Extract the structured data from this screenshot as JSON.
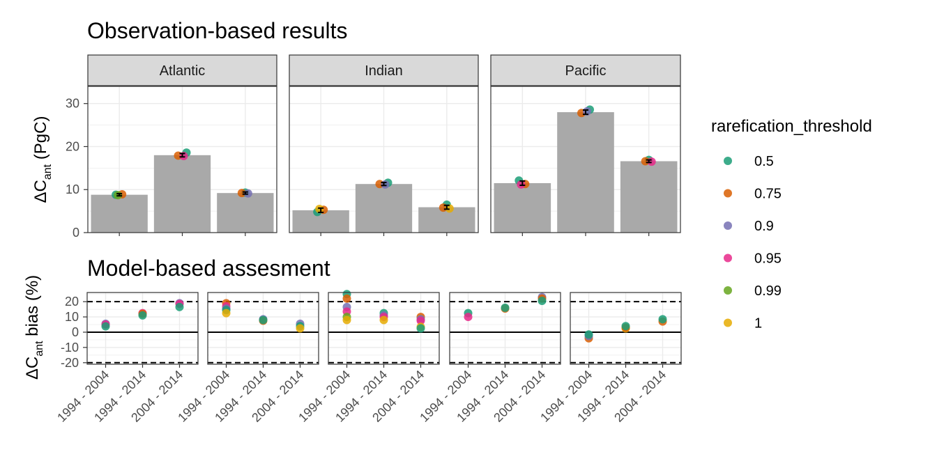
{
  "chart_data": [
    {
      "type": "bar",
      "title": "Observation-based results",
      "ylabel_prefix": "ΔC",
      "ylabel_sub": "ant",
      "ylabel_suffix": " (PgC)",
      "ylim": [
        0,
        34
      ],
      "yticks": [
        0,
        10,
        20,
        30
      ],
      "grid": true,
      "categories": [
        "1994 - 2004",
        "1994 - 2014",
        "2004 - 2014"
      ],
      "panels": [
        {
          "name": "Atlantic",
          "bars": [
            8.8,
            18.0,
            9.2
          ],
          "error": [
            0.25,
            0.4,
            0.25
          ],
          "points": [
            {
              "cat": 0,
              "threshold": "0.5",
              "value": 8.8
            },
            {
              "cat": 0,
              "threshold": "0.75",
              "value": 8.9
            },
            {
              "cat": 0,
              "threshold": "0.99",
              "value": 8.7
            },
            {
              "cat": 1,
              "threshold": "0.5",
              "value": 18.6
            },
            {
              "cat": 1,
              "threshold": "0.75",
              "value": 17.9
            },
            {
              "cat": 1,
              "threshold": "0.95",
              "value": 17.8
            },
            {
              "cat": 2,
              "threshold": "0.5",
              "value": 9.3
            },
            {
              "cat": 2,
              "threshold": "0.75",
              "value": 9.2
            },
            {
              "cat": 2,
              "threshold": "0.9",
              "value": 9.1
            }
          ]
        },
        {
          "name": "Indian",
          "bars": [
            5.2,
            11.3,
            5.9
          ],
          "error": [
            0.5,
            0.35,
            0.45
          ],
          "points": [
            {
              "cat": 0,
              "threshold": "0.5",
              "value": 4.8
            },
            {
              "cat": 0,
              "threshold": "0.75",
              "value": 5.3
            },
            {
              "cat": 0,
              "threshold": "1",
              "value": 5.5
            },
            {
              "cat": 1,
              "threshold": "0.5",
              "value": 11.6
            },
            {
              "cat": 1,
              "threshold": "0.75",
              "value": 11.3
            },
            {
              "cat": 1,
              "threshold": "0.9",
              "value": 11.2
            },
            {
              "cat": 2,
              "threshold": "0.5",
              "value": 6.5
            },
            {
              "cat": 2,
              "threshold": "0.75",
              "value": 5.8
            },
            {
              "cat": 2,
              "threshold": "1",
              "value": 5.6
            }
          ]
        },
        {
          "name": "Pacific",
          "bars": [
            11.5,
            28.0,
            16.6
          ],
          "error": [
            0.5,
            0.5,
            0.3
          ],
          "points": [
            {
              "cat": 0,
              "threshold": "0.5",
              "value": 12.1
            },
            {
              "cat": 0,
              "threshold": "0.75",
              "value": 11.3
            },
            {
              "cat": 0,
              "threshold": "0.95",
              "value": 11.2
            },
            {
              "cat": 1,
              "threshold": "0.5",
              "value": 28.6
            },
            {
              "cat": 1,
              "threshold": "0.75",
              "value": 27.8
            },
            {
              "cat": 1,
              "threshold": "0.9",
              "value": 28.2
            },
            {
              "cat": 2,
              "threshold": "0.5",
              "value": 16.9
            },
            {
              "cat": 2,
              "threshold": "0.75",
              "value": 16.6
            },
            {
              "cat": 2,
              "threshold": "0.95",
              "value": 16.5
            }
          ]
        }
      ]
    },
    {
      "type": "scatter",
      "title": "Model-based assesment",
      "ylabel_prefix": "ΔC",
      "ylabel_sub": "ant",
      "ylabel_suffix": " bias (%)",
      "ylim": [
        -21,
        26
      ],
      "yticks": [
        -20,
        -10,
        0,
        10,
        20
      ],
      "grid": true,
      "reference_lines": {
        "solid": [
          0
        ],
        "dashed": [
          -20,
          20
        ]
      },
      "categories": [
        "1994 - 2004",
        "1994 - 2014",
        "2004 - 2014"
      ],
      "panels": [
        {
          "points": [
            {
              "cat": 0,
              "threshold": "0.9",
              "value": 5.5
            },
            {
              "cat": 0,
              "threshold": "0.95",
              "value": 5.0
            },
            {
              "cat": 0,
              "threshold": "0.5",
              "value": 3.8
            },
            {
              "cat": 1,
              "threshold": "0.95",
              "value": 12.5
            },
            {
              "cat": 1,
              "threshold": "0.75",
              "value": 12.0
            },
            {
              "cat": 1,
              "threshold": "0.5",
              "value": 11.0
            },
            {
              "cat": 2,
              "threshold": "0.9",
              "value": 19.0
            },
            {
              "cat": 2,
              "threshold": "0.95",
              "value": 18.5
            },
            {
              "cat": 2,
              "threshold": "0.5",
              "value": 16.5
            }
          ]
        },
        {
          "points": [
            {
              "cat": 0,
              "threshold": "0.75",
              "value": 19.0
            },
            {
              "cat": 0,
              "threshold": "0.95",
              "value": 17.0
            },
            {
              "cat": 0,
              "threshold": "0.9",
              "value": 15.5
            },
            {
              "cat": 0,
              "threshold": "0.5",
              "value": 14.5
            },
            {
              "cat": 0,
              "threshold": "1",
              "value": 12.5
            },
            {
              "cat": 1,
              "threshold": "0.9",
              "value": 8.5
            },
            {
              "cat": 1,
              "threshold": "0.75",
              "value": 7.5
            },
            {
              "cat": 1,
              "threshold": "0.5",
              "value": 8.0
            },
            {
              "cat": 2,
              "threshold": "0.9",
              "value": 5.5
            },
            {
              "cat": 2,
              "threshold": "0.5",
              "value": 4.0
            },
            {
              "cat": 2,
              "threshold": "1",
              "value": 2.5
            }
          ]
        },
        {
          "points": [
            {
              "cat": 0,
              "threshold": "0.5",
              "value": 25.0
            },
            {
              "cat": 0,
              "threshold": "0.75",
              "value": 22.0
            },
            {
              "cat": 0,
              "threshold": "0.9",
              "value": 16.5
            },
            {
              "cat": 0,
              "threshold": "0.95",
              "value": 13.5
            },
            {
              "cat": 0,
              "threshold": "0.99",
              "value": 10.0
            },
            {
              "cat": 0,
              "threshold": "1",
              "value": 8.0
            },
            {
              "cat": 1,
              "threshold": "0.5",
              "value": 12.5
            },
            {
              "cat": 1,
              "threshold": "0.9",
              "value": 11.0
            },
            {
              "cat": 1,
              "threshold": "0.95",
              "value": 10.0
            },
            {
              "cat": 1,
              "threshold": "1",
              "value": 8.0
            },
            {
              "cat": 2,
              "threshold": "0.75",
              "value": 10.0
            },
            {
              "cat": 2,
              "threshold": "0.9",
              "value": 8.5
            },
            {
              "cat": 2,
              "threshold": "0.95",
              "value": 7.5
            },
            {
              "cat": 2,
              "threshold": "1",
              "value": 3.5
            },
            {
              "cat": 2,
              "threshold": "0.5",
              "value": 2.5
            }
          ]
        },
        {
          "points": [
            {
              "cat": 0,
              "threshold": "0.5",
              "value": 12.5
            },
            {
              "cat": 0,
              "threshold": "0.95",
              "value": 10.0
            },
            {
              "cat": 1,
              "threshold": "0.75",
              "value": 15.5
            },
            {
              "cat": 1,
              "threshold": "0.5",
              "value": 16.0
            },
            {
              "cat": 2,
              "threshold": "0.9",
              "value": 23.0
            },
            {
              "cat": 2,
              "threshold": "0.75",
              "value": 22.0
            },
            {
              "cat": 2,
              "threshold": "0.5",
              "value": 20.5
            }
          ]
        },
        {
          "points": [
            {
              "cat": 0,
              "threshold": "0.75",
              "value": -4.0
            },
            {
              "cat": 0,
              "threshold": "0.9",
              "value": -2.5
            },
            {
              "cat": 0,
              "threshold": "0.5",
              "value": -1.5
            },
            {
              "cat": 1,
              "threshold": "1",
              "value": 2.5
            },
            {
              "cat": 1,
              "threshold": "0.75",
              "value": 3.0
            },
            {
              "cat": 1,
              "threshold": "0.5",
              "value": 4.0
            },
            {
              "cat": 2,
              "threshold": "0.75",
              "value": 7.0
            },
            {
              "cat": 2,
              "threshold": "0.5",
              "value": 8.5
            }
          ]
        }
      ]
    }
  ],
  "legend": {
    "title": "rarefication_threshold",
    "placement": "right",
    "items": [
      {
        "label": "0.5",
        "color": "#1b9e77"
      },
      {
        "label": "0.75",
        "color": "#d95f02"
      },
      {
        "label": "0.9",
        "color": "#7570b3"
      },
      {
        "label": "0.95",
        "color": "#e7298a"
      },
      {
        "label": "0.99",
        "color": "#66a61e"
      },
      {
        "label": "1",
        "color": "#e6ab02"
      }
    ]
  },
  "colors": {
    "bar": "#a9a9a9",
    "strip_bg": "#d9d9d9",
    "grid": "#ebebeb",
    "panel_border": "#333333"
  }
}
